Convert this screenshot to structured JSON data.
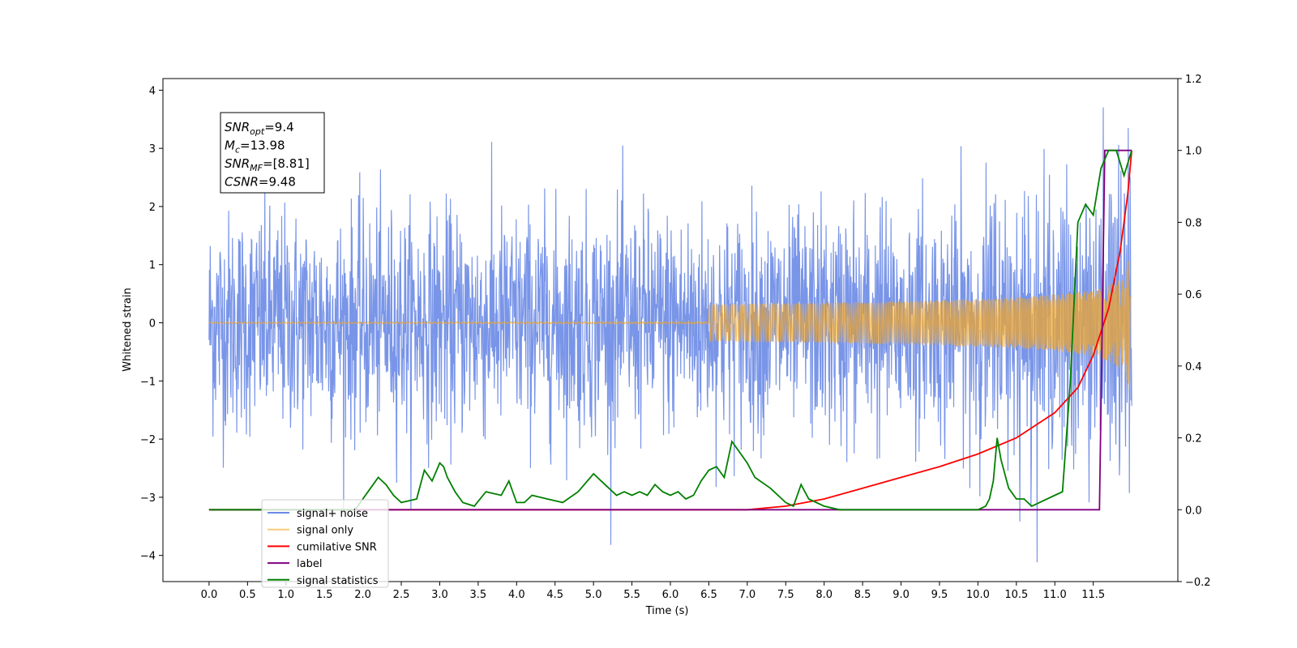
{
  "chart_data": {
    "type": "line",
    "xlabel": "Time (s)",
    "ylabel": "Whitened strain",
    "xlim": [
      -0.6,
      12.6
    ],
    "ylim": [
      -4.45,
      4.2
    ],
    "y2lim": [
      -0.2,
      1.2
    ],
    "xticks": [
      "0.0",
      "0.5",
      "1.0",
      "1.5",
      "2.0",
      "2.5",
      "3.0",
      "3.5",
      "4.0",
      "4.5",
      "5.0",
      "5.5",
      "6.0",
      "6.5",
      "7.0",
      "7.5",
      "8.0",
      "8.5",
      "9.0",
      "9.5",
      "10.0",
      "10.5",
      "11.0",
      "11.5"
    ],
    "yticks": [
      "4",
      "3",
      "2",
      "1",
      "0",
      "−1",
      "−2",
      "−3",
      "−4"
    ],
    "y2ticks": [
      "1.2",
      "1.0",
      "0.8",
      "0.6",
      "0.4",
      "0.2",
      "0.0",
      "−0.2"
    ],
    "grid": false,
    "legend_position": "lower-left",
    "annotation": {
      "lines": [
        {
          "sym": "SNR",
          "sub": "opt",
          "text": "=9.4"
        },
        {
          "sym": "M",
          "sub": "c",
          "text": "=13.98"
        },
        {
          "sym": "SNR",
          "sub": "MF",
          "text": "=[8.81]"
        },
        {
          "sym": "CSNR",
          "sub": "",
          "text": "=9.48"
        }
      ]
    },
    "series": [
      {
        "name": "signal+ noise",
        "color": "#6a8ae6",
        "axis": "left",
        "kind": "noise",
        "x_range": [
          0.0,
          12.0
        ],
        "amplitude_rms": 0.95,
        "peak_max": 3.84,
        "peak_min": -4.12
      },
      {
        "name": "signal only",
        "color": "#f5a623",
        "axis": "left",
        "kind": "chirp",
        "x_range": [
          0.0,
          12.0
        ],
        "amplitude_end": 1.3
      },
      {
        "name": "cumilative SNR",
        "color": "#ff0000",
        "axis": "right",
        "x": [
          0.0,
          7.0,
          7.5,
          8.0,
          8.5,
          9.0,
          9.5,
          10.0,
          10.5,
          11.0,
          11.3,
          11.5,
          11.7,
          11.85,
          11.95,
          12.0
        ],
        "values": [
          0.0,
          0.0,
          0.01,
          0.03,
          0.06,
          0.09,
          0.12,
          0.155,
          0.2,
          0.27,
          0.34,
          0.43,
          0.56,
          0.72,
          0.88,
          1.0
        ]
      },
      {
        "name": "label",
        "color": "#800080",
        "axis": "right",
        "x": [
          0.0,
          11.58,
          11.65,
          12.0
        ],
        "values": [
          0.0,
          0.0,
          1.0,
          1.0
        ]
      },
      {
        "name": "signal statistics",
        "color": "#008000",
        "axis": "right",
        "x": [
          0.0,
          1.0,
          1.9,
          2.0,
          2.1,
          2.2,
          2.3,
          2.4,
          2.5,
          2.7,
          2.8,
          2.9,
          3.0,
          3.05,
          3.1,
          3.2,
          3.3,
          3.45,
          3.6,
          3.8,
          3.9,
          4.0,
          4.1,
          4.2,
          4.4,
          4.6,
          4.8,
          5.0,
          5.1,
          5.2,
          5.3,
          5.4,
          5.5,
          5.6,
          5.7,
          5.8,
          5.9,
          6.0,
          6.1,
          6.2,
          6.3,
          6.4,
          6.5,
          6.6,
          6.7,
          6.8,
          6.9,
          7.0,
          7.1,
          7.3,
          7.5,
          7.6,
          7.7,
          7.8,
          8.0,
          8.2,
          8.5,
          9.0,
          9.5,
          10.0,
          10.1,
          10.15,
          10.2,
          10.25,
          10.3,
          10.4,
          10.5,
          10.6,
          10.7,
          10.8,
          11.0,
          11.1,
          11.2,
          11.3,
          11.4,
          11.5,
          11.6,
          11.7,
          11.8,
          11.9,
          12.0
        ],
        "values": [
          0.0,
          0.0,
          0.0,
          0.03,
          0.06,
          0.09,
          0.07,
          0.04,
          0.02,
          0.03,
          0.11,
          0.08,
          0.13,
          0.12,
          0.09,
          0.05,
          0.02,
          0.01,
          0.05,
          0.04,
          0.08,
          0.02,
          0.02,
          0.04,
          0.03,
          0.02,
          0.05,
          0.1,
          0.08,
          0.06,
          0.04,
          0.05,
          0.04,
          0.05,
          0.04,
          0.07,
          0.05,
          0.04,
          0.05,
          0.03,
          0.04,
          0.08,
          0.11,
          0.12,
          0.09,
          0.19,
          0.16,
          0.13,
          0.09,
          0.06,
          0.02,
          0.01,
          0.07,
          0.03,
          0.01,
          0.0,
          0.0,
          0.0,
          0.0,
          0.0,
          0.01,
          0.03,
          0.08,
          0.2,
          0.14,
          0.06,
          0.03,
          0.03,
          0.01,
          0.02,
          0.04,
          0.05,
          0.35,
          0.8,
          0.85,
          0.82,
          0.95,
          1.0,
          1.0,
          0.93,
          1.0
        ]
      }
    ]
  }
}
